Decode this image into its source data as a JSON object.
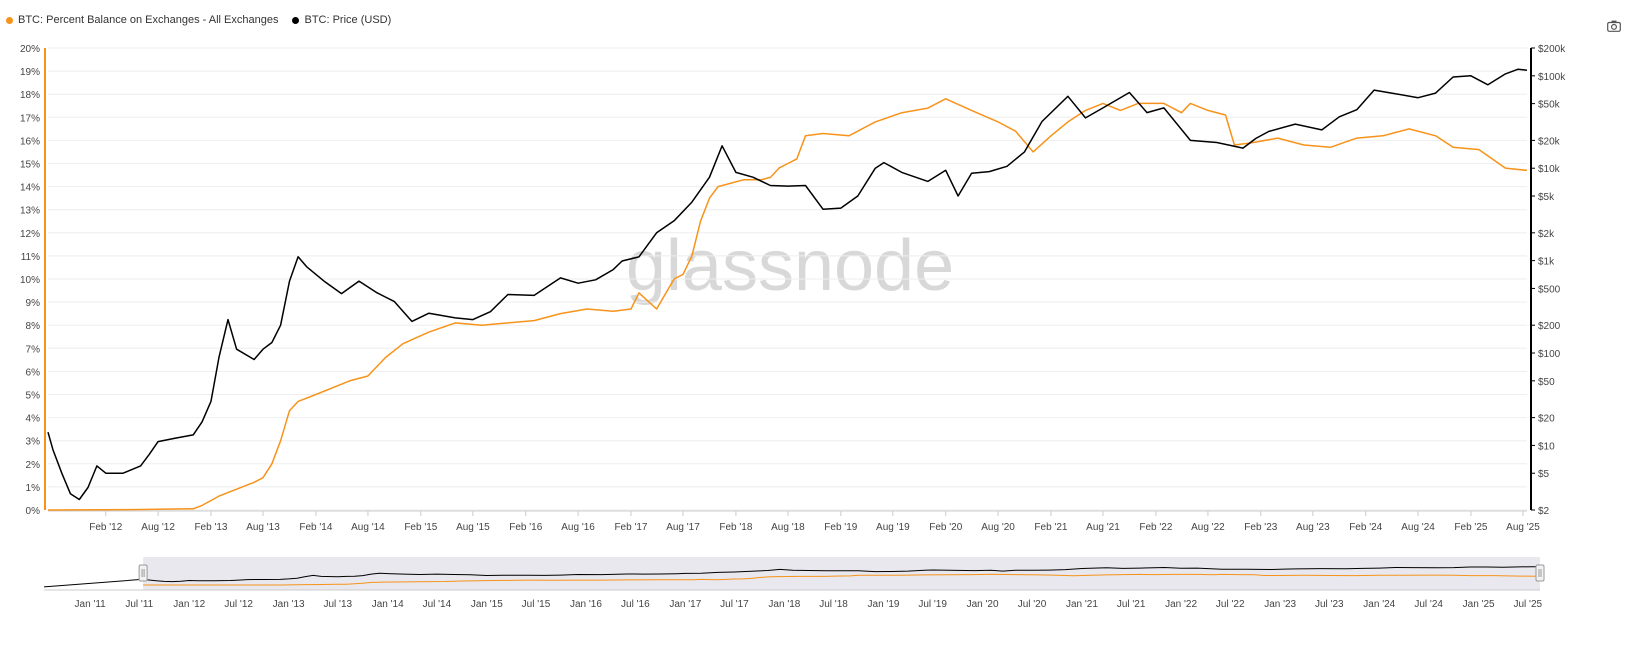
{
  "legend": {
    "series1": "BTC: Percent Balance on Exchanges - All Exchanges",
    "series2": "BTC: Price (USD)"
  },
  "watermark": "glassnode",
  "colors": {
    "balance": "#f7931a",
    "price": "#000000",
    "grid": "#eeeeee",
    "navigator_bg": "#e8e8ee"
  },
  "icons": {
    "camera": "camera-icon"
  },
  "chart_data": {
    "type": "line",
    "x_ticks": [
      "Feb '12",
      "Aug '12",
      "Feb '13",
      "Aug '13",
      "Feb '14",
      "Aug '14",
      "Feb '15",
      "Aug '15",
      "Feb '16",
      "Aug '16",
      "Feb '17",
      "Aug '17",
      "Feb '18",
      "Aug '18",
      "Feb '19",
      "Aug '19",
      "Feb '20",
      "Aug '20",
      "Feb '21",
      "Aug '21",
      "Feb '22",
      "Aug '22",
      "Feb '23",
      "Aug '23",
      "Feb '24",
      "Aug '24",
      "Feb '25",
      "Aug '25"
    ],
    "x_tick_dates": [
      "2012-02-01",
      "2012-08-01",
      "2013-02-01",
      "2013-08-01",
      "2014-02-01",
      "2014-08-01",
      "2015-02-01",
      "2015-08-01",
      "2016-02-01",
      "2016-08-01",
      "2017-02-01",
      "2017-08-01",
      "2018-02-01",
      "2018-08-01",
      "2019-02-01",
      "2019-08-01",
      "2020-02-01",
      "2020-08-01",
      "2021-02-01",
      "2021-08-01",
      "2022-02-01",
      "2022-08-01",
      "2023-02-01",
      "2023-08-01",
      "2024-02-01",
      "2024-08-01",
      "2025-02-01",
      "2025-08-01"
    ],
    "xlim": [
      "2011-07-15",
      "2025-08-15"
    ],
    "y_left_ticks": [
      "0%",
      "1%",
      "2%",
      "3%",
      "4%",
      "5%",
      "6%",
      "7%",
      "8%",
      "9%",
      "10%",
      "11%",
      "12%",
      "13%",
      "14%",
      "15%",
      "16%",
      "17%",
      "18%",
      "19%",
      "20%"
    ],
    "y_left_lim": [
      0,
      20
    ],
    "y_right_ticks": [
      "$2",
      "$5",
      "$10",
      "$20",
      "$50",
      "$100",
      "$200",
      "$500",
      "$1k",
      "$2k",
      "$5k",
      "$10k",
      "$20k",
      "$50k",
      "$100k",
      "$200k"
    ],
    "y_right_tick_values": [
      2,
      5,
      10,
      20,
      50,
      100,
      200,
      500,
      1000,
      2000,
      5000,
      10000,
      20000,
      50000,
      100000,
      200000
    ],
    "y_right_lim": [
      2,
      200000
    ],
    "y_right_scale": "log",
    "grid": true,
    "legend_position": "top-left",
    "series": [
      {
        "name": "BTC: Percent Balance on Exchanges - All Exchanges",
        "axis": "left",
        "color": "#f7931a",
        "points": [
          [
            "2011-07-15",
            0.0
          ],
          [
            "2012-06-01",
            0.02
          ],
          [
            "2012-12-01",
            0.05
          ],
          [
            "2013-01-01",
            0.2
          ],
          [
            "2013-03-01",
            0.6
          ],
          [
            "2013-05-01",
            0.9
          ],
          [
            "2013-07-01",
            1.2
          ],
          [
            "2013-08-01",
            1.4
          ],
          [
            "2013-09-01",
            2.0
          ],
          [
            "2013-10-01",
            3.0
          ],
          [
            "2013-11-01",
            4.3
          ],
          [
            "2013-12-01",
            4.7
          ],
          [
            "2014-02-01",
            5.0
          ],
          [
            "2014-06-01",
            5.6
          ],
          [
            "2014-08-01",
            5.8
          ],
          [
            "2014-10-01",
            6.6
          ],
          [
            "2014-12-01",
            7.2
          ],
          [
            "2015-03-01",
            7.7
          ],
          [
            "2015-06-01",
            8.1
          ],
          [
            "2015-09-01",
            8.0
          ],
          [
            "2015-12-01",
            8.1
          ],
          [
            "2016-03-01",
            8.2
          ],
          [
            "2016-06-01",
            8.5
          ],
          [
            "2016-09-01",
            8.7
          ],
          [
            "2016-12-01",
            8.6
          ],
          [
            "2017-02-01",
            8.7
          ],
          [
            "2017-03-01",
            9.4
          ],
          [
            "2017-05-01",
            8.7
          ],
          [
            "2017-07-01",
            10.0
          ],
          [
            "2017-08-01",
            10.2
          ],
          [
            "2017-09-01",
            11.0
          ],
          [
            "2017-10-01",
            12.5
          ],
          [
            "2017-11-01",
            13.5
          ],
          [
            "2017-12-01",
            14.0
          ],
          [
            "2018-03-01",
            14.3
          ],
          [
            "2018-05-01",
            14.3
          ],
          [
            "2018-06-01",
            14.4
          ],
          [
            "2018-07-01",
            14.8
          ],
          [
            "2018-08-01",
            15.0
          ],
          [
            "2018-09-01",
            15.2
          ],
          [
            "2018-10-01",
            16.2
          ],
          [
            "2018-12-01",
            16.3
          ],
          [
            "2019-03-01",
            16.2
          ],
          [
            "2019-06-01",
            16.8
          ],
          [
            "2019-09-01",
            17.2
          ],
          [
            "2019-12-01",
            17.4
          ],
          [
            "2020-02-01",
            17.8
          ],
          [
            "2020-05-01",
            17.3
          ],
          [
            "2020-08-01",
            16.8
          ],
          [
            "2020-10-01",
            16.4
          ],
          [
            "2020-12-01",
            15.5
          ],
          [
            "2021-02-01",
            16.2
          ],
          [
            "2021-04-01",
            16.8
          ],
          [
            "2021-06-01",
            17.3
          ],
          [
            "2021-08-01",
            17.6
          ],
          [
            "2021-10-01",
            17.3
          ],
          [
            "2021-12-01",
            17.6
          ],
          [
            "2022-03-01",
            17.6
          ],
          [
            "2022-05-01",
            17.2
          ],
          [
            "2022-06-01",
            17.6
          ],
          [
            "2022-08-01",
            17.3
          ],
          [
            "2022-10-01",
            17.1
          ],
          [
            "2022-11-01",
            15.8
          ],
          [
            "2023-01-01",
            15.9
          ],
          [
            "2023-04-01",
            16.1
          ],
          [
            "2023-07-01",
            15.8
          ],
          [
            "2023-10-01",
            15.7
          ],
          [
            "2024-01-01",
            16.1
          ],
          [
            "2024-04-01",
            16.2
          ],
          [
            "2024-07-01",
            16.5
          ],
          [
            "2024-10-01",
            16.2
          ],
          [
            "2024-12-01",
            15.7
          ],
          [
            "2025-03-01",
            15.6
          ],
          [
            "2025-06-01",
            14.8
          ],
          [
            "2025-08-15",
            14.7
          ]
        ]
      },
      {
        "name": "BTC: Price (USD)",
        "axis": "right",
        "color": "#000000",
        "points": [
          [
            "2011-07-15",
            13.9
          ],
          [
            "2011-08-01",
            9
          ],
          [
            "2011-09-01",
            5
          ],
          [
            "2011-10-01",
            3
          ],
          [
            "2011-11-01",
            2.6
          ],
          [
            "2011-12-01",
            3.5
          ],
          [
            "2012-01-01",
            6
          ],
          [
            "2012-02-01",
            5
          ],
          [
            "2012-04-01",
            5
          ],
          [
            "2012-06-01",
            6
          ],
          [
            "2012-07-01",
            8
          ],
          [
            "2012-08-01",
            11
          ],
          [
            "2012-10-01",
            12
          ],
          [
            "2012-12-01",
            13
          ],
          [
            "2013-01-01",
            18
          ],
          [
            "2013-02-01",
            30
          ],
          [
            "2013-03-01",
            90
          ],
          [
            "2013-04-01",
            230
          ],
          [
            "2013-05-01",
            110
          ],
          [
            "2013-07-01",
            85
          ],
          [
            "2013-08-01",
            110
          ],
          [
            "2013-09-01",
            130
          ],
          [
            "2013-10-01",
            200
          ],
          [
            "2013-11-01",
            600
          ],
          [
            "2013-12-01",
            1100
          ],
          [
            "2014-01-01",
            850
          ],
          [
            "2014-03-01",
            600
          ],
          [
            "2014-05-01",
            440
          ],
          [
            "2014-07-01",
            600
          ],
          [
            "2014-09-01",
            450
          ],
          [
            "2014-11-01",
            360
          ],
          [
            "2015-01-01",
            220
          ],
          [
            "2015-03-01",
            270
          ],
          [
            "2015-06-01",
            240
          ],
          [
            "2015-08-01",
            230
          ],
          [
            "2015-10-01",
            280
          ],
          [
            "2015-12-01",
            430
          ],
          [
            "2016-03-01",
            420
          ],
          [
            "2016-06-01",
            650
          ],
          [
            "2016-08-01",
            570
          ],
          [
            "2016-10-01",
            620
          ],
          [
            "2016-12-01",
            800
          ],
          [
            "2017-01-01",
            990
          ],
          [
            "2017-03-01",
            1100
          ],
          [
            "2017-05-01",
            2000
          ],
          [
            "2017-07-01",
            2700
          ],
          [
            "2017-09-01",
            4300
          ],
          [
            "2017-11-01",
            8000
          ],
          [
            "2017-12-15",
            17500
          ],
          [
            "2018-02-01",
            9000
          ],
          [
            "2018-04-01",
            8000
          ],
          [
            "2018-06-01",
            6500
          ],
          [
            "2018-08-01",
            6400
          ],
          [
            "2018-10-01",
            6500
          ],
          [
            "2018-12-01",
            3600
          ],
          [
            "2019-02-01",
            3700
          ],
          [
            "2019-04-01",
            5000
          ],
          [
            "2019-06-01",
            10000
          ],
          [
            "2019-07-01",
            11500
          ],
          [
            "2019-09-01",
            9000
          ],
          [
            "2019-12-01",
            7200
          ],
          [
            "2020-02-01",
            9500
          ],
          [
            "2020-03-15",
            5000
          ],
          [
            "2020-05-01",
            8800
          ],
          [
            "2020-07-01",
            9200
          ],
          [
            "2020-09-01",
            10500
          ],
          [
            "2020-11-01",
            15000
          ],
          [
            "2021-01-01",
            32000
          ],
          [
            "2021-04-01",
            60000
          ],
          [
            "2021-06-01",
            35000
          ],
          [
            "2021-08-01",
            45000
          ],
          [
            "2021-11-01",
            66000
          ],
          [
            "2022-01-01",
            40000
          ],
          [
            "2022-03-01",
            45000
          ],
          [
            "2022-06-01",
            20000
          ],
          [
            "2022-09-01",
            19000
          ],
          [
            "2022-12-01",
            16500
          ],
          [
            "2023-01-15",
            21000
          ],
          [
            "2023-03-01",
            25000
          ],
          [
            "2023-06-01",
            30000
          ],
          [
            "2023-09-01",
            26000
          ],
          [
            "2023-11-01",
            36000
          ],
          [
            "2024-01-01",
            43000
          ],
          [
            "2024-03-01",
            70000
          ],
          [
            "2024-05-01",
            65000
          ],
          [
            "2024-08-01",
            58000
          ],
          [
            "2024-10-01",
            65000
          ],
          [
            "2024-12-01",
            97000
          ],
          [
            "2025-02-01",
            100000
          ],
          [
            "2025-04-01",
            80000
          ],
          [
            "2025-06-01",
            105000
          ],
          [
            "2025-07-15",
            118000
          ],
          [
            "2025-08-15",
            115000
          ]
        ]
      }
    ]
  },
  "navigator": {
    "x_ticks": [
      "Jan '11",
      "Jul '11",
      "Jan '12",
      "Jul '12",
      "Jan '13",
      "Jul '13",
      "Jan '14",
      "Jul '14",
      "Jan '15",
      "Jul '15",
      "Jan '16",
      "Jul '16",
      "Jan '17",
      "Jul '17",
      "Jan '18",
      "Jul '18",
      "Jan '19",
      "Jul '19",
      "Jan '20",
      "Jul '20",
      "Jan '21",
      "Jul '21",
      "Jan '22",
      "Jul '22",
      "Jan '23",
      "Jul '23",
      "Jan '24",
      "Jul '24",
      "Jan '25",
      "Jul '25"
    ],
    "x_tick_dates": [
      "2011-01-01",
      "2011-07-01",
      "2012-01-01",
      "2012-07-01",
      "2013-01-01",
      "2013-07-01",
      "2014-01-01",
      "2014-07-01",
      "2015-01-01",
      "2015-07-01",
      "2016-01-01",
      "2016-07-01",
      "2017-01-01",
      "2017-07-01",
      "2018-01-01",
      "2018-07-01",
      "2019-01-01",
      "2019-07-01",
      "2020-01-01",
      "2020-07-01",
      "2021-01-01",
      "2021-07-01",
      "2022-01-01",
      "2022-07-01",
      "2023-01-01",
      "2023-07-01",
      "2024-01-01",
      "2024-07-01",
      "2025-01-01",
      "2025-07-01"
    ],
    "xlim": [
      "2010-07-15",
      "2025-08-15"
    ],
    "selected_range": [
      "2011-07-15",
      "2025-08-15"
    ]
  }
}
